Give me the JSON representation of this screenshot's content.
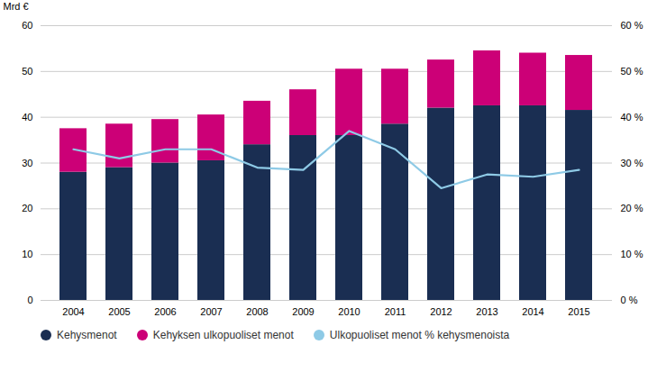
{
  "chart_data": {
    "type": "bar",
    "stacked": true,
    "categories": [
      "2004",
      "2005",
      "2006",
      "2007",
      "2008",
      "2009",
      "2010",
      "2011",
      "2012",
      "2013",
      "2014",
      "2015"
    ],
    "series": [
      {
        "name": "Kehysmenot",
        "color": "#1a2e52",
        "values": [
          28.0,
          29.0,
          30.0,
          30.5,
          34.0,
          36.0,
          36.0,
          38.5,
          42.0,
          42.5,
          42.5,
          41.5
        ]
      },
      {
        "name": "Kehyksen ulkopuoliset menot",
        "color": "#cc0077",
        "values": [
          9.5,
          9.5,
          9.5,
          10.0,
          9.5,
          10.0,
          14.5,
          12.0,
          10.5,
          12.0,
          11.5,
          12.0
        ]
      },
      {
        "name": "Ulkopuoliset menot % kehysmenoista",
        "type": "line",
        "axis": "y2",
        "color": "#8ecae6",
        "values": [
          33.0,
          31.0,
          33.0,
          33.0,
          29.0,
          28.5,
          37.0,
          33.0,
          24.5,
          27.5,
          27.0,
          28.5
        ]
      }
    ],
    "y_label": "Mrd €",
    "ylim": [
      0,
      60
    ],
    "yticks": [
      0,
      10,
      20,
      30,
      40,
      50,
      60
    ],
    "y2lim": [
      0,
      60
    ],
    "y2ticks": [
      {
        "value": 0,
        "label": "0 %"
      },
      {
        "value": 10,
        "label": "10 %"
      },
      {
        "value": 20,
        "label": "20 %"
      },
      {
        "value": 30,
        "label": "30 %"
      },
      {
        "value": 40,
        "label": "40 %"
      },
      {
        "value": 50,
        "label": "50 %"
      },
      {
        "value": 60,
        "label": "60 %"
      }
    ],
    "grid": true,
    "legend": "bottom"
  }
}
